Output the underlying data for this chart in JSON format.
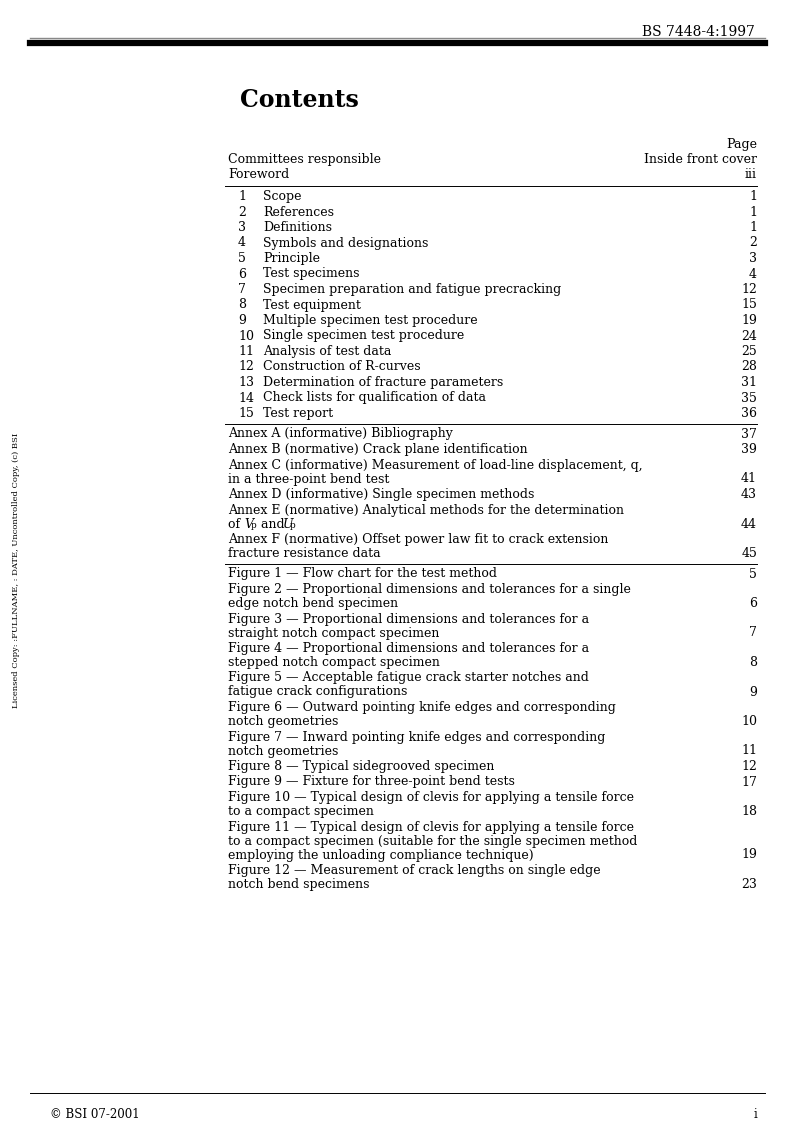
{
  "title": "Contents",
  "header_ref": "BS 7448-4:1997",
  "page_label": "Page",
  "background_color": "#ffffff",
  "text_color": "#000000",
  "watermark_text": "Licensed Copy: :FULLNAME, : DATE, Uncontrolled Copy, (c) BSI",
  "footer_left": "© BSI 07-2001",
  "footer_right": "i",
  "toc_entries": [
    {
      "num": "",
      "text": "Committees responsible",
      "page": "Inside front cover",
      "indent": 0,
      "line_before": false,
      "line_after": false
    },
    {
      "num": "",
      "text": "Foreword",
      "page": "iii",
      "indent": 0,
      "line_before": false,
      "line_after": true
    },
    {
      "num": "1",
      "text": "Scope",
      "page": "1",
      "indent": 1,
      "line_before": false,
      "line_after": false
    },
    {
      "num": "2",
      "text": "References",
      "page": "1",
      "indent": 1,
      "line_before": false,
      "line_after": false
    },
    {
      "num": "3",
      "text": "Definitions",
      "page": "1",
      "indent": 1,
      "line_before": false,
      "line_after": false
    },
    {
      "num": "4",
      "text": "Symbols and designations",
      "page": "2",
      "indent": 1,
      "line_before": false,
      "line_after": false
    },
    {
      "num": "5",
      "text": "Principle",
      "page": "3",
      "indent": 1,
      "line_before": false,
      "line_after": false
    },
    {
      "num": "6",
      "text": "Test specimens",
      "page": "4",
      "indent": 1,
      "line_before": false,
      "line_after": false
    },
    {
      "num": "7",
      "text": "Specimen preparation and fatigue precracking",
      "page": "12",
      "indent": 1,
      "line_before": false,
      "line_after": false
    },
    {
      "num": "8",
      "text": "Test equipment",
      "page": "15",
      "indent": 1,
      "line_before": false,
      "line_after": false
    },
    {
      "num": "9",
      "text": "Multiple specimen test procedure",
      "page": "19",
      "indent": 1,
      "line_before": false,
      "line_after": false
    },
    {
      "num": "10",
      "text": "Single specimen test procedure",
      "page": "24",
      "indent": 1,
      "line_before": false,
      "line_after": false
    },
    {
      "num": "11",
      "text": "Analysis of test data",
      "page": "25",
      "indent": 1,
      "line_before": false,
      "line_after": false
    },
    {
      "num": "12",
      "text": "Construction of R-curves",
      "page": "28",
      "indent": 1,
      "line_before": false,
      "line_after": false
    },
    {
      "num": "13",
      "text": "Determination of fracture parameters",
      "page": "31",
      "indent": 1,
      "line_before": false,
      "line_after": false
    },
    {
      "num": "14",
      "text": "Check lists for qualification of data",
      "page": "35",
      "indent": 1,
      "line_before": false,
      "line_after": false
    },
    {
      "num": "15",
      "text": "Test report",
      "page": "36",
      "indent": 1,
      "line_before": false,
      "line_after": true
    },
    {
      "num": "",
      "text": "Annex A (informative) Bibliography",
      "page": "37",
      "indent": 0,
      "line_before": false,
      "line_after": false
    },
    {
      "num": "",
      "text": "Annex B (normative) Crack plane identification",
      "page": "39",
      "indent": 0,
      "line_before": false,
      "line_after": false
    },
    {
      "num": "",
      "text": "Annex C (informative) Measurement of load-line displacement, q,\nin a three-point bend test",
      "page": "41",
      "indent": 0,
      "line_before": false,
      "line_after": false
    },
    {
      "num": "",
      "text": "Annex D (informative) Single specimen methods",
      "page": "43",
      "indent": 0,
      "line_before": false,
      "line_after": false
    },
    {
      "num": "",
      "text": "Annex E (normative) Analytical methods for the determination\nof $V_p$ and $U_p$",
      "page": "44",
      "indent": 0,
      "line_before": false,
      "line_after": false
    },
    {
      "num": "",
      "text": "Annex F (normative) Offset power law fit to crack extension\nfracture resistance data",
      "page": "45",
      "indent": 0,
      "line_before": false,
      "line_after": true
    },
    {
      "num": "",
      "text": "Figure 1 — Flow chart for the test method",
      "page": "5",
      "indent": 0,
      "line_before": false,
      "line_after": false
    },
    {
      "num": "",
      "text": "Figure 2 — Proportional dimensions and tolerances for a single\nedge notch bend specimen",
      "page": "6",
      "indent": 0,
      "line_before": false,
      "line_after": false
    },
    {
      "num": "",
      "text": "Figure 3 — Proportional dimensions and tolerances for a\nstraight notch compact specimen",
      "page": "7",
      "indent": 0,
      "line_before": false,
      "line_after": false
    },
    {
      "num": "",
      "text": "Figure 4 — Proportional dimensions and tolerances for a\nstepped notch compact specimen",
      "page": "8",
      "indent": 0,
      "line_before": false,
      "line_after": false
    },
    {
      "num": "",
      "text": "Figure 5 — Acceptable fatigue crack starter notches and\nfatigue crack configurations",
      "page": "9",
      "indent": 0,
      "line_before": false,
      "line_after": false
    },
    {
      "num": "",
      "text": "Figure 6 — Outward pointing knife edges and corresponding\nnotch geometries",
      "page": "10",
      "indent": 0,
      "line_before": false,
      "line_after": false
    },
    {
      "num": "",
      "text": "Figure 7 — Inward pointing knife edges and corresponding\nnotch geometries",
      "page": "11",
      "indent": 0,
      "line_before": false,
      "line_after": false
    },
    {
      "num": "",
      "text": "Figure 8 — Typical sidegrooved specimen",
      "page": "12",
      "indent": 0,
      "line_before": false,
      "line_after": false
    },
    {
      "num": "",
      "text": "Figure 9 — Fixture for three-point bend tests",
      "page": "17",
      "indent": 0,
      "line_before": false,
      "line_after": false
    },
    {
      "num": "",
      "text": "Figure 10 — Typical design of clevis for applying a tensile force\nto a compact specimen",
      "page": "18",
      "indent": 0,
      "line_before": false,
      "line_after": false
    },
    {
      "num": "",
      "text": "Figure 11 — Typical design of clevis for applying a tensile force\nto a compact specimen (suitable for the single specimen method\nemploying the unloading compliance technique)",
      "page": "19",
      "indent": 0,
      "line_before": false,
      "line_after": false
    },
    {
      "num": "",
      "text": "Figure 12 — Measurement of crack lengths on single edge\nnotch bend specimens",
      "page": "23",
      "indent": 0,
      "line_before": false,
      "line_after": false
    }
  ]
}
